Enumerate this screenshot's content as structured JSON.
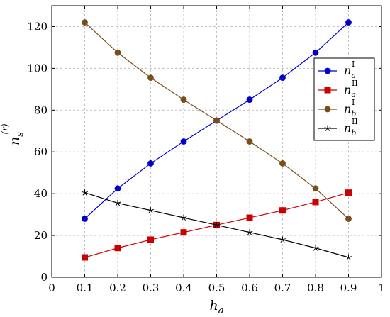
{
  "chart_data": {
    "type": "line",
    "x": [
      0.1,
      0.2,
      0.3,
      0.4,
      0.5,
      0.6,
      0.7,
      0.8,
      0.9
    ],
    "xlabel": {
      "base": "h",
      "sub": "a"
    },
    "ylabel": {
      "base": "n",
      "sub": "s",
      "sup": "(r)"
    },
    "xlim": [
      0,
      1
    ],
    "ylim": [
      0,
      130
    ],
    "xticks": [
      0,
      0.1,
      0.2,
      0.3,
      0.4,
      0.5,
      0.6,
      0.7,
      0.8,
      0.9,
      1
    ],
    "xtick_labels": [
      "0",
      "0.1",
      "0.2",
      "0.3",
      "0.4",
      "0.5",
      "0.6",
      "0.7",
      "0.8",
      "0.9",
      "1"
    ],
    "yticks": [
      0,
      20,
      40,
      60,
      80,
      100,
      120
    ],
    "ytick_labels": [
      "0",
      "20",
      "40",
      "60",
      "80",
      "100",
      "120"
    ],
    "grid": "dashed",
    "legend_position": "right",
    "series": [
      {
        "base": "n",
        "sub": "a",
        "sup": "I",
        "color": "#0000cc",
        "marker": "circle",
        "values": [
          28,
          42.5,
          54.5,
          65,
          75,
          85,
          95.5,
          107.5,
          122
        ]
      },
      {
        "base": "n",
        "sub": "a",
        "sup": "II",
        "color": "#cc0000",
        "marker": "square",
        "values": [
          9.5,
          14,
          18,
          21.5,
          25,
          28.5,
          32,
          36,
          40.5
        ]
      },
      {
        "base": "n",
        "sub": "b",
        "sup": "I",
        "color": "#7a4d1a",
        "marker": "circle",
        "values": [
          122,
          107.5,
          95.5,
          85,
          75,
          65,
          54.5,
          42.5,
          28
        ]
      },
      {
        "base": "n",
        "sub": "b",
        "sup": "II",
        "color": "#000000",
        "marker": "star",
        "values": [
          40.5,
          35.5,
          32,
          28.5,
          25,
          21.5,
          18,
          14,
          9.5
        ]
      }
    ]
  }
}
